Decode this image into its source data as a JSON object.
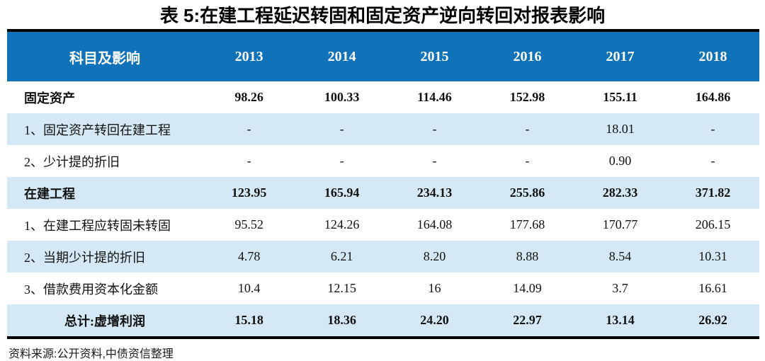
{
  "title": "表 5:在建工程延迟转固和固定资产逆向转回对报表影响",
  "source_note": "资料来源:公开资料,中债资信整理",
  "colors": {
    "header_bg": "#1072B8",
    "header_text": "#FFFFFF",
    "stripe_bg": "#D4E9F5",
    "border": "#000000"
  },
  "chart_data": {
    "type": "table",
    "columns": [
      "科目及影响",
      "2013",
      "2014",
      "2015",
      "2016",
      "2017",
      "2018"
    ],
    "rows": [
      {
        "label": "固定资产",
        "values": [
          "98.26",
          "100.33",
          "114.46",
          "152.98",
          "155.11",
          "164.86"
        ],
        "bold": true,
        "stripe": false,
        "align": "left"
      },
      {
        "label": "1、固定资产转回在建工程",
        "values": [
          "-",
          "-",
          "-",
          "-",
          "18.01",
          "-"
        ],
        "bold": false,
        "stripe": true,
        "align": "left"
      },
      {
        "label": "2、少计提的折旧",
        "values": [
          "-",
          "-",
          "-",
          "-",
          "0.90",
          "-"
        ],
        "bold": false,
        "stripe": false,
        "align": "left"
      },
      {
        "label": "在建工程",
        "values": [
          "123.95",
          "165.94",
          "234.13",
          "255.86",
          "282.33",
          "371.82"
        ],
        "bold": true,
        "stripe": true,
        "align": "left"
      },
      {
        "label": "1、在建工程应转固未转固",
        "values": [
          "95.52",
          "124.26",
          "164.08",
          "177.68",
          "170.77",
          "206.15"
        ],
        "bold": false,
        "stripe": false,
        "align": "left"
      },
      {
        "label": "2、当期少计提的折旧",
        "values": [
          "4.78",
          "6.21",
          "8.20",
          "8.88",
          "8.54",
          "10.31"
        ],
        "bold": false,
        "stripe": true,
        "align": "left"
      },
      {
        "label": "3、借款费用资本化金额",
        "values": [
          "10.4",
          "12.15",
          "16",
          "14.09",
          "3.7",
          "16.61"
        ],
        "bold": false,
        "stripe": false,
        "align": "left"
      },
      {
        "label": "总计:虚增利润",
        "values": [
          "15.18",
          "18.36",
          "24.20",
          "22.97",
          "13.14",
          "26.92"
        ],
        "bold": true,
        "stripe": true,
        "align": "center"
      }
    ]
  }
}
